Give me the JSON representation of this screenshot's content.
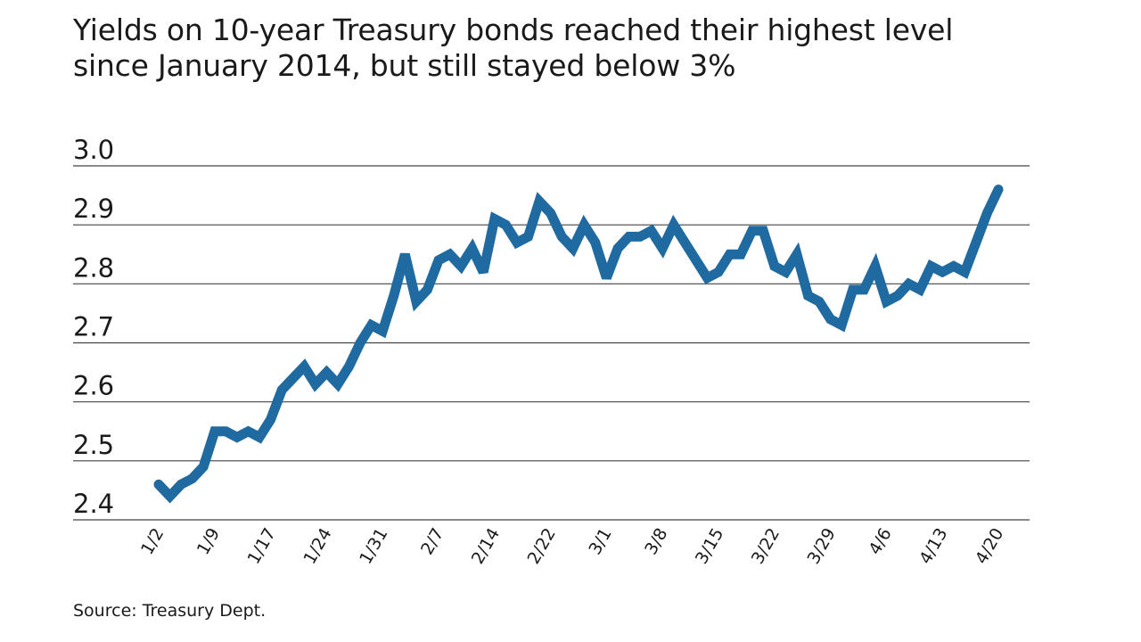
{
  "header": {
    "subtitle_line1": "Yields on 10-year Treasury bonds reached their highest level",
    "subtitle_line2": "since January 2014, but still stayed below 3%"
  },
  "footer": {
    "source": "Source: Treasury Dept."
  },
  "chart_data": {
    "type": "line",
    "title": "",
    "xlabel": "",
    "ylabel": "",
    "ylim": [
      2.4,
      3.0
    ],
    "yticks": [
      "3.0",
      "2.9",
      "2.8",
      "2.7",
      "2.6",
      "2.5",
      "2.4"
    ],
    "xticks": [
      "1/2",
      "1/9",
      "1/17",
      "1/24",
      "1/31",
      "2/7",
      "2/14",
      "2/22",
      "3/1",
      "3/8",
      "3/15",
      "3/22",
      "3/29",
      "4/6",
      "4/13",
      "4/20"
    ],
    "grid": true,
    "line_color": "#1f6aa0",
    "series": [
      {
        "values": [
          2.46,
          2.44,
          2.46,
          2.47,
          2.49,
          2.55,
          2.55,
          2.54,
          2.55,
          2.54,
          2.57,
          2.62,
          2.64,
          2.66,
          2.63,
          2.65,
          2.63,
          2.66,
          2.7,
          2.73,
          2.72,
          2.78,
          2.85,
          2.77,
          2.79,
          2.84,
          2.85,
          2.83,
          2.86,
          2.82,
          2.91,
          2.9,
          2.87,
          2.88,
          2.94,
          2.92,
          2.88,
          2.86,
          2.9,
          2.87,
          2.81,
          2.86,
          2.88,
          2.88,
          2.89,
          2.86,
          2.9,
          2.87,
          2.84,
          2.81,
          2.82,
          2.85,
          2.85,
          2.89,
          2.89,
          2.83,
          2.82,
          2.85,
          2.78,
          2.77,
          2.74,
          2.73,
          2.79,
          2.79,
          2.83,
          2.77,
          2.78,
          2.8,
          2.79,
          2.83,
          2.82,
          2.83,
          2.82,
          2.87,
          2.92,
          2.96
        ]
      }
    ]
  }
}
